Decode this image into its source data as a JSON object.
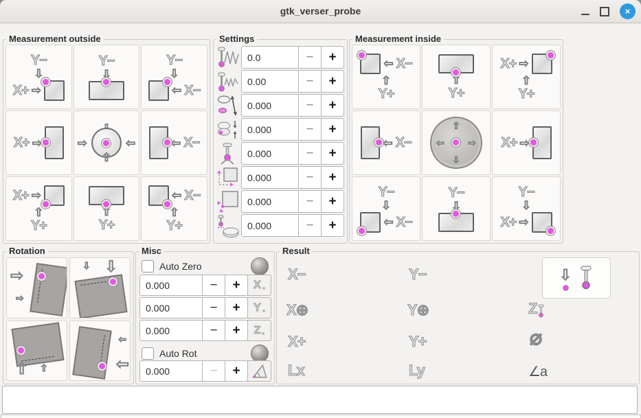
{
  "window_title": "gtk_verser_probe",
  "colors": {
    "accent_dot": "#e556e5",
    "close_button": "#2d9ade",
    "background": "#f4f2f0"
  },
  "measurement_outside": {
    "label": "Measurement outside",
    "buttons": [
      {
        "name": "probe-outside-xplus-yminus",
        "lines": [
          [
            "t:Y−"
          ],
          [
            "a:d"
          ],
          [
            "t:X+",
            "a:r",
            "s:sq:tl"
          ]
        ]
      },
      {
        "name": "probe-outside-yminus",
        "lines": [
          [
            "t:Y−"
          ],
          [
            "a:d"
          ],
          [
            "s:hrect:t"
          ]
        ]
      },
      {
        "name": "probe-outside-xminus-yminus",
        "lines": [
          [
            "t:Y−"
          ],
          [
            "a:d"
          ],
          [
            "s:sq:tr",
            "a:l",
            "t:X−"
          ]
        ]
      },
      {
        "name": "probe-outside-xplus",
        "lines": [
          [
            "t:X+",
            "a:r",
            "s:vrect:l"
          ]
        ]
      },
      {
        "name": "probe-outside-center",
        "lines": [
          [
            "c:out"
          ]
        ]
      },
      {
        "name": "probe-outside-xminus",
        "lines": [
          [
            "s:vrect:r",
            "a:l",
            "t:X−"
          ]
        ]
      },
      {
        "name": "probe-outside-xplus-yplus",
        "lines": [
          [
            "t:X+",
            "a:r",
            "s:sq:bl"
          ],
          [
            "a:u"
          ],
          [
            "t:Y+"
          ]
        ]
      },
      {
        "name": "probe-outside-yplus",
        "lines": [
          [
            "s:hrect:b"
          ],
          [
            "a:u"
          ],
          [
            "t:Y+"
          ]
        ]
      },
      {
        "name": "probe-outside-xminus-yplus",
        "lines": [
          [
            "s:sq:br",
            "a:l",
            "t:X−"
          ],
          [
            "a:u"
          ],
          [
            "t:Y+"
          ]
        ]
      }
    ]
  },
  "settings": {
    "label": "Settings",
    "rows": [
      {
        "name": "search-velocity",
        "icon": "search-velocity-icon",
        "value": "0.0",
        "minus": "−",
        "plus": "+"
      },
      {
        "name": "probe-velocity",
        "icon": "probe-velocity-icon",
        "value": "0.00",
        "minus": "−",
        "plus": "+"
      },
      {
        "name": "max-xy-distance",
        "icon": "max-xy-distance-icon",
        "value": "0.000",
        "minus": "−",
        "plus": "+"
      },
      {
        "name": "latch-return-distance",
        "icon": "latch-return-distance-icon",
        "value": "0.000",
        "minus": "−",
        "plus": "+"
      },
      {
        "name": "probe-tip-diameter",
        "icon": "probe-diameter-icon",
        "value": "0.000",
        "minus": "−",
        "plus": "+"
      },
      {
        "name": "xy-clearance",
        "icon": "xy-clearance-icon",
        "value": "0.000",
        "minus": "−",
        "plus": "+"
      },
      {
        "name": "edge-length",
        "icon": "edge-length-icon",
        "value": "0.000",
        "minus": "−",
        "plus": "+"
      },
      {
        "name": "z-clearance",
        "icon": "z-clearance-icon",
        "value": "0.000",
        "minus": "−",
        "plus": "+"
      }
    ]
  },
  "measurement_inside": {
    "label": "Measurement inside",
    "buttons": [
      {
        "name": "probe-inside-xminus-yplus",
        "lines": [
          [
            "s:sq:tl",
            "a:l",
            "t:X−"
          ],
          [
            "a:u"
          ],
          [
            "t:Y+"
          ]
        ]
      },
      {
        "name": "probe-inside-yplus",
        "lines": [
          [
            "s:hrect:b"
          ],
          [
            "a:u"
          ],
          [
            "t:Y+"
          ]
        ]
      },
      {
        "name": "probe-inside-xplus-yplus",
        "lines": [
          [
            "t:X+",
            "a:r",
            "s:sq:tr"
          ],
          [
            "a:u"
          ],
          [
            "t:Y+"
          ]
        ]
      },
      {
        "name": "probe-inside-xminus",
        "lines": [
          [
            "s:vrect:r",
            "a:l",
            "t:X−"
          ]
        ]
      },
      {
        "name": "probe-inside-center",
        "lines": [
          [
            "c:in"
          ]
        ]
      },
      {
        "name": "probe-inside-xplus",
        "lines": [
          [
            "t:X+",
            "a:r",
            "s:vrect:l"
          ]
        ]
      },
      {
        "name": "probe-inside-xminus-yminus",
        "lines": [
          [
            "t:Y−"
          ],
          [
            "a:d"
          ],
          [
            "s:sq:bl",
            "a:l",
            "t:X−"
          ]
        ]
      },
      {
        "name": "probe-inside-yminus",
        "lines": [
          [
            "t:Y−"
          ],
          [
            "a:d"
          ],
          [
            "s:hrect:t"
          ]
        ]
      },
      {
        "name": "probe-inside-xplus-yminus",
        "lines": [
          [
            "t:Y−"
          ],
          [
            "a:d"
          ],
          [
            "t:X+",
            "a:r",
            "s:sq:br"
          ]
        ]
      }
    ]
  },
  "rotation": {
    "label": "Rotation",
    "buttons": [
      {
        "name": "rotate-probe-left-edge",
        "dir": "r"
      },
      {
        "name": "rotate-probe-top-edge",
        "dir": "d"
      },
      {
        "name": "rotate-probe-bottom-edge",
        "dir": "u"
      },
      {
        "name": "rotate-probe-right-edge",
        "dir": "l"
      }
    ]
  },
  "misc": {
    "label": "Misc",
    "auto_zero_label": "Auto Zero",
    "auto_rot_label": "Auto Rot",
    "spin_rows": [
      {
        "value": "0.000",
        "axis": "X",
        "minus": "−",
        "plus": "+"
      },
      {
        "value": "0.000",
        "axis": "Y",
        "minus": "−",
        "plus": "+"
      },
      {
        "value": "0.000",
        "axis": "Z",
        "minus": "−",
        "plus": "+"
      }
    ],
    "rotation_row": {
      "value": "0.000",
      "minus": "−",
      "plus": "+"
    }
  },
  "result": {
    "label": "Result",
    "cells": [
      {
        "name": "result-x-minus",
        "text": "X−"
      },
      {
        "name": "result-y-minus",
        "text": "Y−"
      },
      {
        "name": "result-probe-z-down"
      },
      {
        "name": "result-x-center",
        "text": "X⊕"
      },
      {
        "name": "result-y-center",
        "text": "Y⊕"
      },
      {
        "name": "result-z-height",
        "text": "Z"
      },
      {
        "name": "result-x-plus",
        "text": "X+"
      },
      {
        "name": "result-y-plus",
        "text": "Y+"
      },
      {
        "name": "result-diameter",
        "text": "⌀"
      },
      {
        "name": "result-length-x",
        "text": "Lx"
      },
      {
        "name": "result-length-y",
        "text": "Ly"
      },
      {
        "name": "result-angle",
        "text": "∠a"
      }
    ]
  },
  "status_message": ""
}
